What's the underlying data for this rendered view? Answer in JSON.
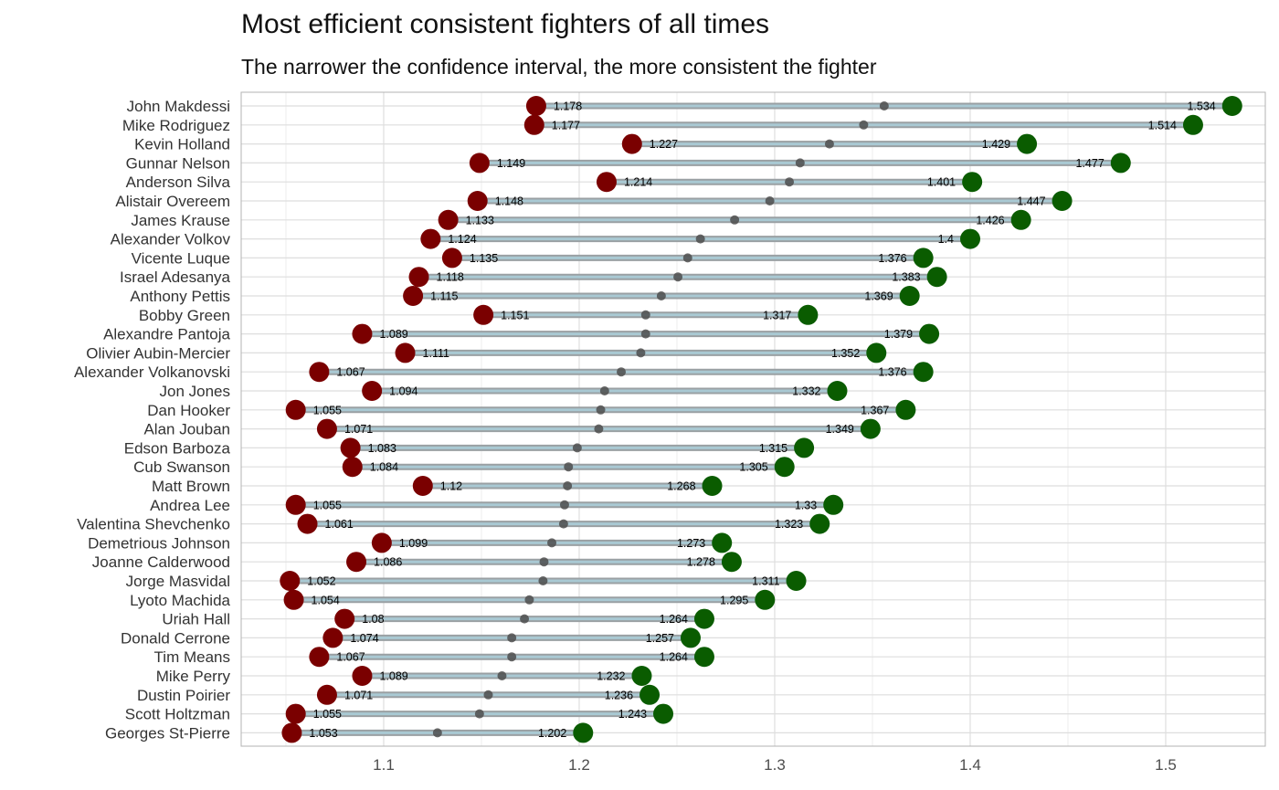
{
  "title": "Most efficient consistent fighters of all times",
  "subtitle": "The narrower the confidence interval, the more consistent the fighter",
  "chart_data": {
    "type": "dumbbell",
    "title": "Most efficient consistent fighters of all times",
    "subtitle": "The narrower the confidence interval, the more consistent the fighter",
    "xlim": [
      1.03,
      1.545
    ],
    "x_ticks": [
      1.1,
      1.2,
      1.3,
      1.4,
      1.5
    ],
    "x_tick_labels": [
      "1.1",
      "1.2",
      "1.3",
      "1.4",
      "1.5"
    ],
    "grid": true,
    "colors": {
      "low": "#7a0000",
      "high": "#0a5c00",
      "mid": "#4d4d4d",
      "segment": "#a9c9d3"
    },
    "fighters": [
      {
        "name": "John Makdessi",
        "low": 1.178,
        "high": 1.534,
        "low_label": "1.178",
        "high_label": "1.534"
      },
      {
        "name": "Mike Rodriguez",
        "low": 1.177,
        "high": 1.514,
        "low_label": "1.177",
        "high_label": "1.514"
      },
      {
        "name": "Kevin Holland",
        "low": 1.227,
        "high": 1.429,
        "low_label": "1.227",
        "high_label": "1.429"
      },
      {
        "name": "Gunnar Nelson",
        "low": 1.149,
        "high": 1.477,
        "low_label": "1.149",
        "high_label": "1.477"
      },
      {
        "name": "Anderson Silva",
        "low": 1.214,
        "high": 1.401,
        "low_label": "1.214",
        "high_label": "1.401"
      },
      {
        "name": "Alistair Overeem",
        "low": 1.148,
        "high": 1.447,
        "low_label": "1.148",
        "high_label": "1.447"
      },
      {
        "name": "James Krause",
        "low": 1.133,
        "high": 1.426,
        "low_label": "1.133",
        "high_label": "1.426"
      },
      {
        "name": "Alexander Volkov",
        "low": 1.124,
        "high": 1.4,
        "low_label": "1.124",
        "high_label": "1.4"
      },
      {
        "name": "Vicente Luque",
        "low": 1.135,
        "high": 1.376,
        "low_label": "1.135",
        "high_label": "1.376"
      },
      {
        "name": "Israel Adesanya",
        "low": 1.118,
        "high": 1.383,
        "low_label": "1.118",
        "high_label": "1.383"
      },
      {
        "name": "Anthony Pettis",
        "low": 1.115,
        "high": 1.369,
        "low_label": "1.115",
        "high_label": "1.369"
      },
      {
        "name": "Bobby Green",
        "low": 1.151,
        "high": 1.317,
        "low_label": "1.151",
        "high_label": "1.317"
      },
      {
        "name": "Alexandre Pantoja",
        "low": 1.089,
        "high": 1.379,
        "low_label": "1.089",
        "high_label": "1.379"
      },
      {
        "name": "Olivier Aubin-Mercier",
        "low": 1.111,
        "high": 1.352,
        "low_label": "1.111",
        "high_label": "1.352"
      },
      {
        "name": "Alexander Volkanovski",
        "low": 1.067,
        "high": 1.376,
        "low_label": "1.067",
        "high_label": "1.376"
      },
      {
        "name": "Jon Jones",
        "low": 1.094,
        "high": 1.332,
        "low_label": "1.094",
        "high_label": "1.332"
      },
      {
        "name": "Dan Hooker",
        "low": 1.055,
        "high": 1.367,
        "low_label": "1.055",
        "high_label": "1.367"
      },
      {
        "name": "Alan Jouban",
        "low": 1.071,
        "high": 1.349,
        "low_label": "1.071",
        "high_label": "1.349"
      },
      {
        "name": "Edson Barboza",
        "low": 1.083,
        "high": 1.315,
        "low_label": "1.083",
        "high_label": "1.315"
      },
      {
        "name": "Cub Swanson",
        "low": 1.084,
        "high": 1.305,
        "low_label": "1.084",
        "high_label": "1.305"
      },
      {
        "name": "Matt Brown",
        "low": 1.12,
        "high": 1.268,
        "low_label": "1.12",
        "high_label": "1.268"
      },
      {
        "name": "Andrea Lee",
        "low": 1.055,
        "high": 1.33,
        "low_label": "1.055",
        "high_label": "1.33"
      },
      {
        "name": "Valentina Shevchenko",
        "low": 1.061,
        "high": 1.323,
        "low_label": "1.061",
        "high_label": "1.323"
      },
      {
        "name": "Demetrious Johnson",
        "low": 1.099,
        "high": 1.273,
        "low_label": "1.099",
        "high_label": "1.273"
      },
      {
        "name": "Joanne Calderwood",
        "low": 1.086,
        "high": 1.278,
        "low_label": "1.086",
        "high_label": "1.278"
      },
      {
        "name": "Jorge Masvidal",
        "low": 1.052,
        "high": 1.311,
        "low_label": "1.052",
        "high_label": "1.311"
      },
      {
        "name": "Lyoto Machida",
        "low": 1.054,
        "high": 1.295,
        "low_label": "1.054",
        "high_label": "1.295"
      },
      {
        "name": "Uriah Hall",
        "low": 1.08,
        "high": 1.264,
        "low_label": "1.08",
        "high_label": "1.264"
      },
      {
        "name": "Donald Cerrone",
        "low": 1.074,
        "high": 1.257,
        "low_label": "1.074",
        "high_label": "1.257"
      },
      {
        "name": "Tim Means",
        "low": 1.067,
        "high": 1.264,
        "low_label": "1.067",
        "high_label": "1.264"
      },
      {
        "name": "Mike Perry",
        "low": 1.089,
        "high": 1.232,
        "low_label": "1.089",
        "high_label": "1.232"
      },
      {
        "name": "Dustin Poirier",
        "low": 1.071,
        "high": 1.236,
        "low_label": "1.071",
        "high_label": "1.236"
      },
      {
        "name": "Scott Holtzman",
        "low": 1.055,
        "high": 1.243,
        "low_label": "1.055",
        "high_label": "1.243"
      },
      {
        "name": "Georges St-Pierre",
        "low": 1.053,
        "high": 1.202,
        "low_label": "1.053",
        "high_label": "1.202"
      }
    ]
  }
}
